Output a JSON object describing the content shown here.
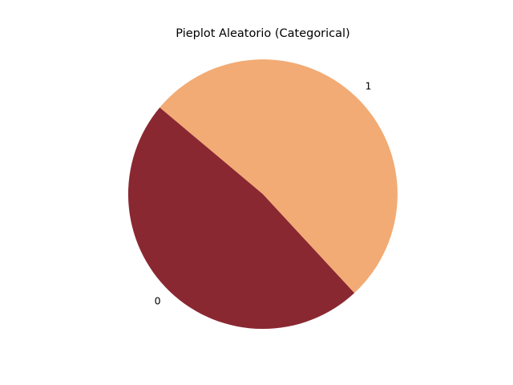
{
  "chart_data": {
    "type": "pie",
    "title": "Pieplot Aleatorio (Categorical)",
    "labels": [
      "0",
      "1"
    ],
    "values": [
      48,
      52
    ],
    "colors": [
      "#8a2832",
      "#f2ab74"
    ],
    "start_angle_deg": 140,
    "counterclock": true,
    "legend": "none"
  }
}
